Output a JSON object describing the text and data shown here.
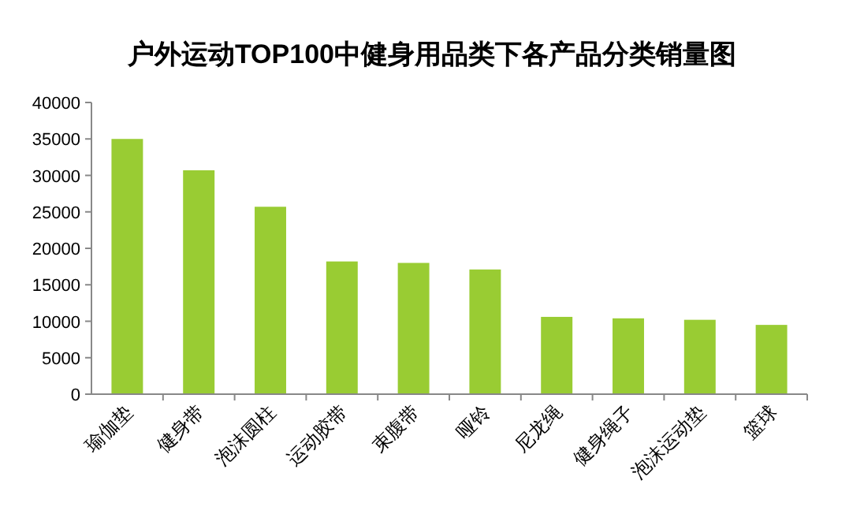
{
  "chart_data": {
    "type": "bar",
    "title": "户外运动TOP100中健身用品类下各产品分类销量图",
    "categories": [
      "瑜伽垫",
      "健身带",
      "泡沫圆柱",
      "运动胶带",
      "束腹带",
      "哑铃",
      "尼龙绳",
      "健身绳子",
      "泡沫运动垫",
      "篮球"
    ],
    "values": [
      35000,
      30700,
      25700,
      18200,
      18000,
      17100,
      10600,
      10400,
      10200,
      9500
    ],
    "color": "#99cc33",
    "ylim": [
      0,
      40000
    ],
    "yticks": [
      0,
      5000,
      10000,
      15000,
      20000,
      25000,
      30000,
      35000,
      40000
    ],
    "grid": false
  }
}
